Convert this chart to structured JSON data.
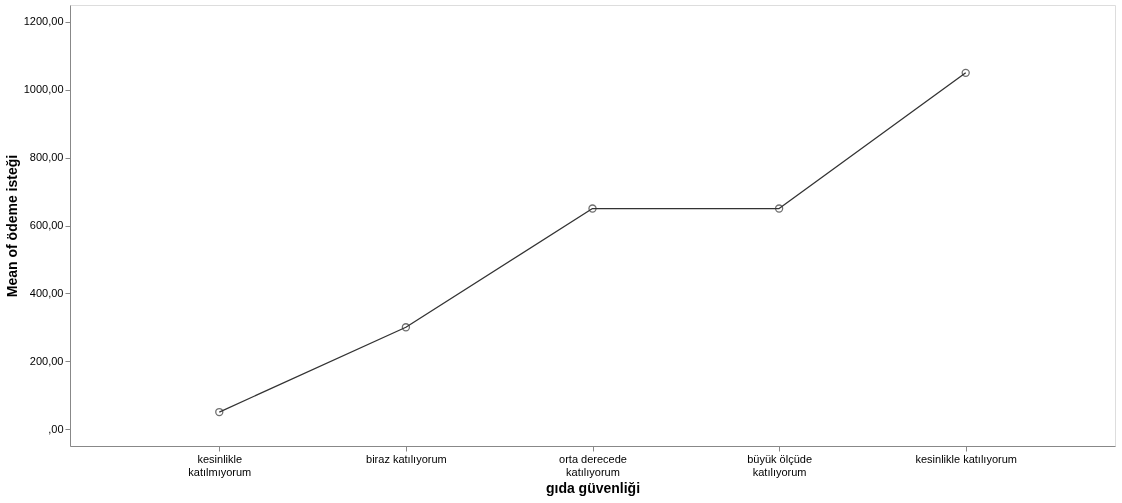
{
  "chart_data": {
    "type": "line",
    "xlabel": "gıda güvenliği",
    "ylabel": "Mean of ödeme isteği",
    "categories": [
      "kesinlikle katılmıyorum",
      "biraz katılıyorum",
      "orta derecede katılıyorum",
      "büyük ölçüde katılıyorum",
      "kesinlikle katılıyorum"
    ],
    "series": [
      {
        "color": "#333333",
        "values": [
          50,
          300,
          650,
          650,
          1050
        ]
      }
    ],
    "ylim": [
      -50,
      1250
    ],
    "yticks": [
      {
        "value": 0,
        "label": ",00"
      },
      {
        "value": 200,
        "label": "200,00"
      },
      {
        "value": 400,
        "label": "400,00"
      },
      {
        "value": 600,
        "label": "600,00"
      },
      {
        "value": 800,
        "label": "800,00"
      },
      {
        "value": 1000,
        "label": "1000,00"
      },
      {
        "value": 1200,
        "label": "1200,00"
      }
    ],
    "grid": false,
    "marker": "circle",
    "line_style": "solid"
  }
}
